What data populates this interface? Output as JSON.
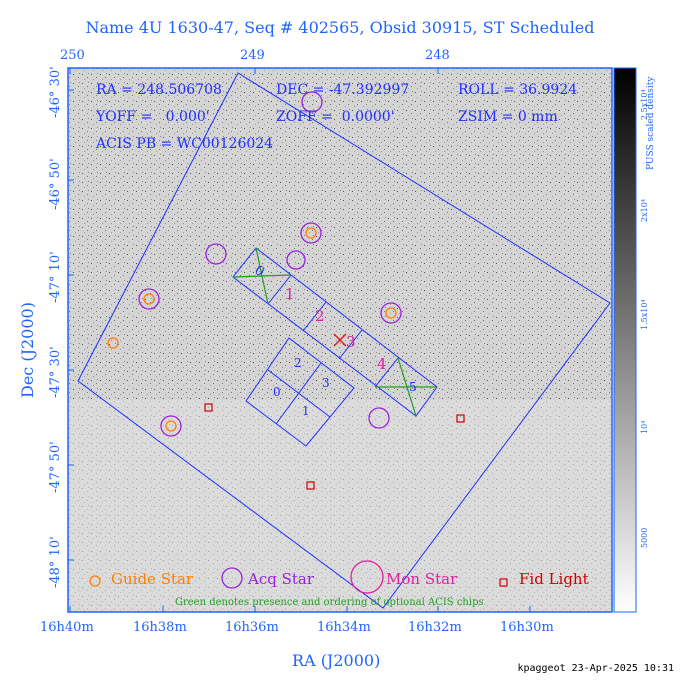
{
  "title": "Name 4U 1630-47, Seq # 402565, Obsid 30915, ST Scheduled",
  "axes": {
    "x_label": "RA (J2000)",
    "y_label": "Dec (J2000)",
    "top_ticks": [
      "250",
      "249",
      "248"
    ],
    "bottom_ticks": [
      "16h40m",
      "16h38m",
      "16h36m",
      "16h34m",
      "16h32m",
      "16h30m"
    ],
    "dec_ticks": [
      "-46° 30'",
      "-46° 50'",
      "-47° 10'",
      "-47° 30'",
      "-47° 50'",
      "-48° 10'"
    ]
  },
  "info": {
    "ra": "RA = 248.506708",
    "dec": "DEC = -47.392997",
    "roll": "ROLL = 36.9924",
    "yoff": "YOFF =   0.000'",
    "zoff": "ZOFF =  0.0000'",
    "zsim": "ZSIM = 0 mm",
    "acis": "ACIS PB = WC00126024"
  },
  "chips": [
    "0",
    "1",
    "2",
    "3",
    "4",
    "5",
    "2",
    "3",
    "0",
    "1"
  ],
  "legend": {
    "guide": "Guide Star",
    "acq": "Acq Star",
    "mon": "Mon Star",
    "fid": "Fid Light",
    "note": "Green denotes presence and ordering of optional ACIS chips"
  },
  "colorbar": {
    "title": "PUSS scaled density",
    "ticks": [
      "2.5x10⁴",
      "2x10⁴",
      "1.5x10⁴",
      "10⁴",
      "5000"
    ]
  },
  "stamp": "kpaggeot 23-Apr-2025 10:31",
  "colors": {
    "axis_blue": "#1e64ff",
    "guide_orange": "#ff8000",
    "acq_purple": "#9a20e0",
    "mon_magenta": "#e020a0",
    "fid_red": "#d00000",
    "chip_green": "#20a020"
  }
}
